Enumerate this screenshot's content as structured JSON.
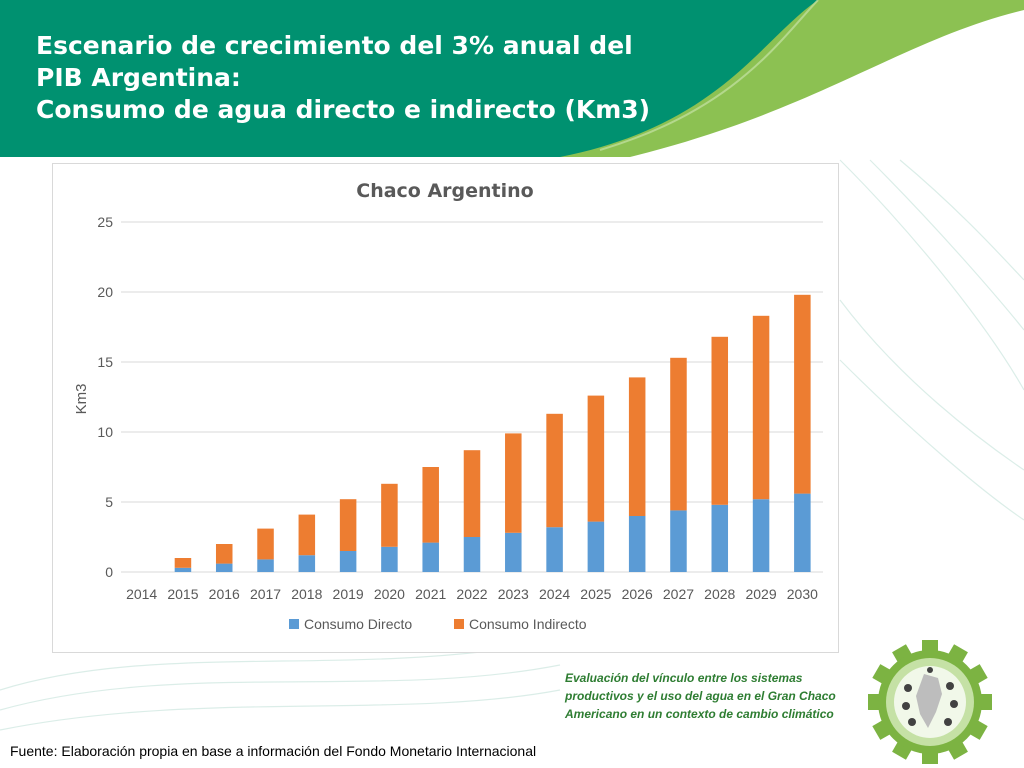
{
  "slide": {
    "title_lines": [
      "Escenario de crecimiento del 3% anual del",
      "PIB Argentina:",
      "Consumo de agua directo e indirecto (Km3)"
    ],
    "project_lines": [
      "Evaluación del vínculo entre los sistemas",
      "productivos y el uso del agua en el Gran Chaco",
      "Americano en un contexto de cambio climático"
    ],
    "source": "Fuente: Elaboración propia en base a información del Fondo Monetario Internacional"
  },
  "colors": {
    "header_green": "#009170",
    "accent_light_green": "#8cc152",
    "series_directo": "#5b9bd5",
    "series_indirecto": "#ed7d31",
    "project_text": "#2e7d32"
  },
  "chart_data": {
    "type": "bar",
    "stacked": true,
    "title": "Chaco Argentino",
    "xlabel": "",
    "ylabel": "Km3",
    "ylim": [
      0,
      25
    ],
    "yticks": [
      0,
      5,
      10,
      15,
      20,
      25
    ],
    "grid": true,
    "legend_position": "bottom",
    "categories": [
      "2014",
      "2015",
      "2016",
      "2017",
      "2018",
      "2019",
      "2020",
      "2021",
      "2022",
      "2023",
      "2024",
      "2025",
      "2026",
      "2027",
      "2028",
      "2029",
      "2030"
    ],
    "series": [
      {
        "name": "Consumo Directo",
        "color": "#5b9bd5",
        "values": [
          0,
          0.3,
          0.6,
          0.9,
          1.2,
          1.5,
          1.8,
          2.1,
          2.5,
          2.8,
          3.2,
          3.6,
          4.0,
          4.4,
          4.8,
          5.2,
          5.6
        ]
      },
      {
        "name": "Consumo Indirecto",
        "color": "#ed7d31",
        "values": [
          0,
          0.7,
          1.4,
          2.2,
          2.9,
          3.7,
          4.5,
          5.4,
          6.2,
          7.1,
          8.1,
          9.0,
          9.9,
          10.9,
          12.0,
          13.1,
          14.2
        ]
      }
    ]
  }
}
